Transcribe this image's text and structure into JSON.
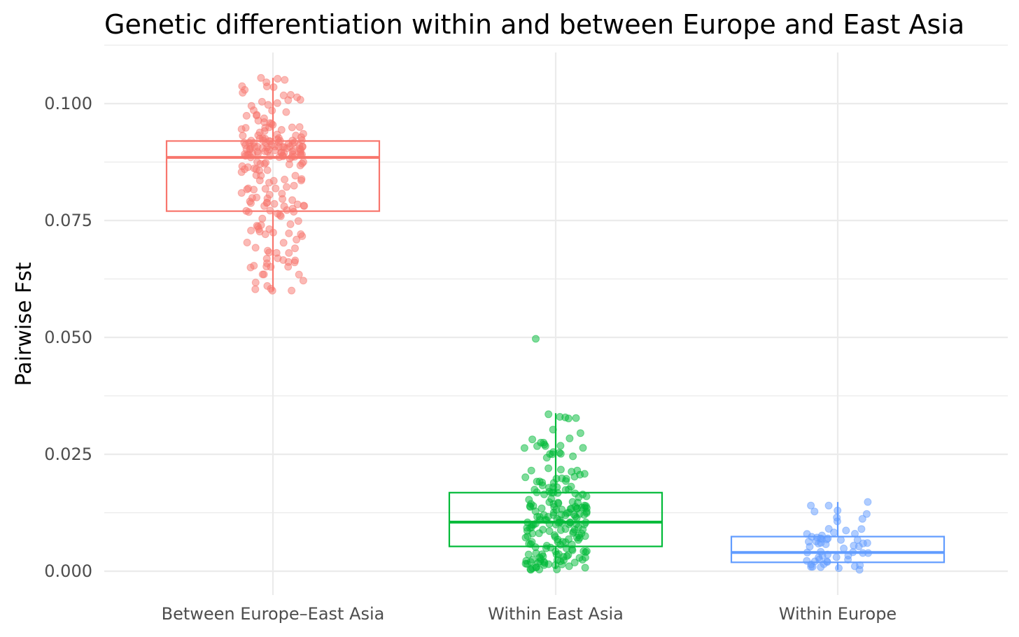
{
  "chart_data": {
    "type": "box",
    "title": "Genetic differentiation within and between Europe and East Asia",
    "xlabel": "",
    "ylabel": "Pairwise Fst",
    "categories": [
      "Between Europe–East Asia",
      "Within East Asia",
      "Within Europe"
    ],
    "ylim": [
      -0.004,
      0.111
    ],
    "y_ticks": [
      0.0,
      0.025,
      0.05,
      0.075,
      0.1
    ],
    "y_tick_labels": [
      "0.000",
      "0.025",
      "0.050",
      "0.075",
      "0.100"
    ],
    "grid": true,
    "legend": "none",
    "series": [
      {
        "category": "Between Europe–East Asia",
        "color": "#f8766d",
        "whisker_low": 0.06,
        "q1": 0.077,
        "median": 0.0885,
        "q3": 0.092,
        "whisker_high": 0.1055,
        "n_points": 220,
        "point_min": 0.06,
        "point_max": 0.1055
      },
      {
        "category": "Within East Asia",
        "color": "#00ba38",
        "whisker_low": 0.0005,
        "q1": 0.0053,
        "median": 0.0105,
        "q3": 0.0168,
        "whisker_high": 0.0338,
        "n_points": 210,
        "point_min": 0.0003,
        "point_max": 0.0497
      },
      {
        "category": "Within Europe",
        "color": "#619cff",
        "whisker_low": 0.0003,
        "q1": 0.0019,
        "median": 0.004,
        "q3": 0.0074,
        "whisker_high": 0.0148,
        "n_points": 60,
        "point_min": 0.0003,
        "point_max": 0.0148
      }
    ]
  }
}
